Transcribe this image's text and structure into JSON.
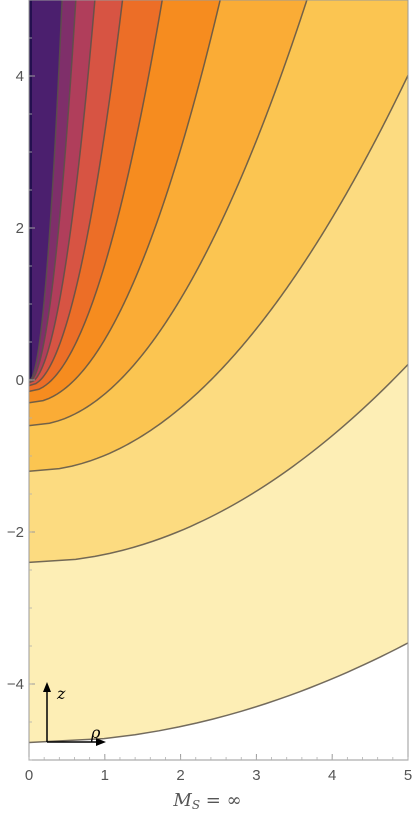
{
  "chart_data": {
    "type": "contour",
    "xlim": [
      0,
      5
    ],
    "ylim": [
      -5,
      5
    ],
    "x_ticks": [
      {
        "value": 0,
        "label": "0"
      },
      {
        "value": 1,
        "label": "1"
      },
      {
        "value": 2,
        "label": "2"
      },
      {
        "value": 3,
        "label": "3"
      },
      {
        "value": 4,
        "label": "4"
      },
      {
        "value": 5,
        "label": "5"
      }
    ],
    "y_ticks": [
      {
        "value": -4,
        "label": "−4"
      },
      {
        "value": -2,
        "label": "−2"
      },
      {
        "value": 0,
        "label": "0"
      },
      {
        "value": 2,
        "label": "2"
      },
      {
        "value": 4,
        "label": "4"
      }
    ],
    "axis_x_symbol": "ρ",
    "axis_y_symbol": "z",
    "caption": {
      "symbol": "M",
      "subscript": "S",
      "rest": " = ∞"
    },
    "contour_vertex_depths": [
      4.77,
      2.4,
      1.2,
      0.6,
      0.3,
      0.15,
      0.075,
      0.0375,
      0.019,
      0.0095
    ],
    "band_colors": [
      "#fdeeb5",
      "#fcdb80",
      "#fbc551",
      "#faac36",
      "#f68c1f",
      "#ec6e27",
      "#d75443",
      "#b03e5b",
      "#7f2f6a",
      "#4b1f6e",
      "#24104f"
    ],
    "line_color": "#5a5248"
  }
}
